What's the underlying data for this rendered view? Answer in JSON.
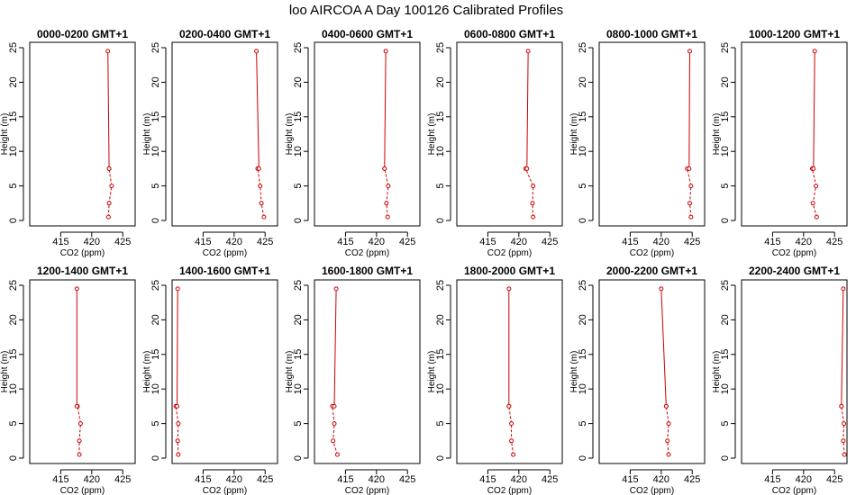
{
  "page_title": "loo AIRCOA A  Day 100126  Calibrated Profiles",
  "colors": {
    "series": "#cc0000",
    "axes": "#000000",
    "background": "#ffffff"
  },
  "chart_data": [
    {
      "type": "line",
      "title": "0000-0200 GMT+1",
      "xlabel": "CO2 (ppm)",
      "ylabel": "Height (m)",
      "xlim": [
        410,
        427
      ],
      "ylim": [
        0,
        25
      ],
      "xticks": [
        415,
        420,
        425
      ],
      "yticks": [
        0,
        5,
        10,
        15,
        20,
        25
      ],
      "series": [
        {
          "x": [
            422.7,
            422.8,
            423.2,
            422.8,
            422.8,
            422.6
          ],
          "y": [
            0.5,
            2.5,
            5,
            7.5,
            7.5,
            24.5
          ]
        }
      ]
    },
    {
      "type": "line",
      "title": "0200-0400 GMT+1",
      "xlabel": "CO2 (ppm)",
      "ylabel": "Height (m)",
      "xlim": [
        410,
        427
      ],
      "ylim": [
        0,
        25
      ],
      "xticks": [
        415,
        420,
        425
      ],
      "yticks": [
        0,
        5,
        10,
        15,
        20,
        25
      ],
      "series": [
        {
          "x": [
            424.8,
            424.4,
            424.2,
            423.8,
            424.0,
            423.6
          ],
          "y": [
            0.5,
            2.5,
            5,
            7.5,
            7.5,
            24.5
          ]
        }
      ]
    },
    {
      "type": "line",
      "title": "0400-0600 GMT+1",
      "xlabel": "CO2 (ppm)",
      "ylabel": "Height (m)",
      "xlim": [
        410,
        427
      ],
      "ylim": [
        0,
        25
      ],
      "xticks": [
        415,
        420,
        425
      ],
      "yticks": [
        0,
        5,
        10,
        15,
        20,
        25
      ],
      "series": [
        {
          "x": [
            421.8,
            421.6,
            421.9,
            421.3,
            421.3,
            421.5
          ],
          "y": [
            0.5,
            2.5,
            5,
            7.5,
            7.5,
            24.5
          ]
        }
      ]
    },
    {
      "type": "line",
      "title": "0600-0800 GMT+1",
      "xlabel": "CO2 (ppm)",
      "ylabel": "Height (m)",
      "xlim": [
        410,
        427
      ],
      "ylim": [
        0,
        25
      ],
      "xticks": [
        415,
        420,
        425
      ],
      "yticks": [
        0,
        5,
        10,
        15,
        20,
        25
      ],
      "series": [
        {
          "x": [
            422.3,
            422.2,
            422.3,
            421.1,
            421.3,
            421.5
          ],
          "y": [
            0.5,
            2.5,
            5,
            7.5,
            7.5,
            24.5
          ]
        }
      ]
    },
    {
      "type": "line",
      "title": "0800-1000 GMT+1",
      "xlabel": "CO2 (ppm)",
      "ylabel": "Height (m)",
      "xlim": [
        410,
        427
      ],
      "ylim": [
        0,
        25
      ],
      "xticks": [
        415,
        420,
        425
      ],
      "yticks": [
        0,
        5,
        10,
        15,
        20,
        25
      ],
      "series": [
        {
          "x": [
            424.8,
            424.6,
            424.8,
            424.2,
            424.5,
            424.6
          ],
          "y": [
            0.5,
            2.5,
            5,
            7.5,
            7.5,
            24.5
          ]
        }
      ]
    },
    {
      "type": "line",
      "title": "1000-1200 GMT+1",
      "xlabel": "CO2 (ppm)",
      "ylabel": "Height (m)",
      "xlim": [
        410,
        427
      ],
      "ylim": [
        0,
        25
      ],
      "xticks": [
        415,
        420,
        425
      ],
      "yticks": [
        0,
        5,
        10,
        15,
        20,
        25
      ],
      "series": [
        {
          "x": [
            422.1,
            421.5,
            422.0,
            421.4,
            421.6,
            421.8
          ],
          "y": [
            0.5,
            2.5,
            5,
            7.5,
            7.5,
            24.5
          ]
        }
      ]
    },
    {
      "type": "line",
      "title": "1200-1400 GMT+1",
      "xlabel": "CO2 (ppm)",
      "ylabel": "Height (m)",
      "xlim": [
        410,
        427
      ],
      "ylim": [
        0,
        25
      ],
      "xticks": [
        415,
        420,
        425
      ],
      "yticks": [
        0,
        5,
        10,
        15,
        20,
        25
      ],
      "series": [
        {
          "x": [
            418.0,
            418.0,
            418.2,
            417.7,
            417.6,
            417.6
          ],
          "y": [
            0.5,
            2.5,
            5,
            7.5,
            7.5,
            24.5
          ]
        }
      ]
    },
    {
      "type": "line",
      "title": "1400-1600 GMT+1",
      "xlabel": "CO2 (ppm)",
      "ylabel": "Height (m)",
      "xlim": [
        410,
        427
      ],
      "ylim": [
        0,
        25
      ],
      "xticks": [
        415,
        420,
        425
      ],
      "yticks": [
        0,
        5,
        10,
        15,
        20,
        25
      ],
      "series": [
        {
          "x": [
            411.0,
            410.9,
            411.0,
            410.6,
            410.8,
            410.9
          ],
          "y": [
            0.5,
            2.5,
            5,
            7.5,
            7.5,
            24.5
          ]
        }
      ]
    },
    {
      "type": "line",
      "title": "1600-1800 GMT+1",
      "xlabel": "CO2 (ppm)",
      "ylabel": "Height (m)",
      "xlim": [
        410,
        427
      ],
      "ylim": [
        0,
        25
      ],
      "xticks": [
        415,
        420,
        425
      ],
      "yticks": [
        0,
        5,
        10,
        15,
        20,
        25
      ],
      "series": [
        {
          "x": [
            413.7,
            413.0,
            413.2,
            412.9,
            413.2,
            413.5
          ],
          "y": [
            0.5,
            2.5,
            5,
            7.5,
            7.5,
            24.5
          ]
        }
      ]
    },
    {
      "type": "line",
      "title": "1800-2000 GMT+1",
      "xlabel": "CO2 (ppm)",
      "ylabel": "Height (m)",
      "xlim": [
        410,
        427
      ],
      "ylim": [
        0,
        25
      ],
      "xticks": [
        415,
        420,
        425
      ],
      "yticks": [
        0,
        5,
        10,
        15,
        20,
        25
      ],
      "series": [
        {
          "x": [
            419.1,
            418.8,
            418.8,
            418.4,
            418.4,
            418.4
          ],
          "y": [
            0.5,
            2.5,
            5,
            7.5,
            7.5,
            24.5
          ]
        }
      ]
    },
    {
      "type": "line",
      "title": "2000-2200 GMT+1",
      "xlabel": "CO2 (ppm)",
      "ylabel": "Height (m)",
      "xlim": [
        410,
        427
      ],
      "ylim": [
        0,
        25
      ],
      "xticks": [
        415,
        420,
        425
      ],
      "yticks": [
        0,
        5,
        10,
        15,
        20,
        25
      ],
      "series": [
        {
          "x": [
            421.2,
            421.0,
            421.2,
            420.8,
            420.8,
            420.0
          ],
          "y": [
            0.5,
            2.5,
            5,
            7.5,
            7.5,
            24.5
          ]
        }
      ]
    },
    {
      "type": "line",
      "title": "2200-2400 GMT+1",
      "xlabel": "CO2 (ppm)",
      "ylabel": "Height (m)",
      "xlim": [
        410,
        427
      ],
      "ylim": [
        0,
        25
      ],
      "xticks": [
        415,
        420,
        425
      ],
      "yticks": [
        0,
        5,
        10,
        15,
        20,
        25
      ],
      "series": [
        {
          "x": [
            426.6,
            426.4,
            426.5,
            426.1,
            426.1,
            426.4
          ],
          "y": [
            0.5,
            2.5,
            5,
            7.5,
            7.5,
            24.5
          ]
        }
      ]
    }
  ]
}
